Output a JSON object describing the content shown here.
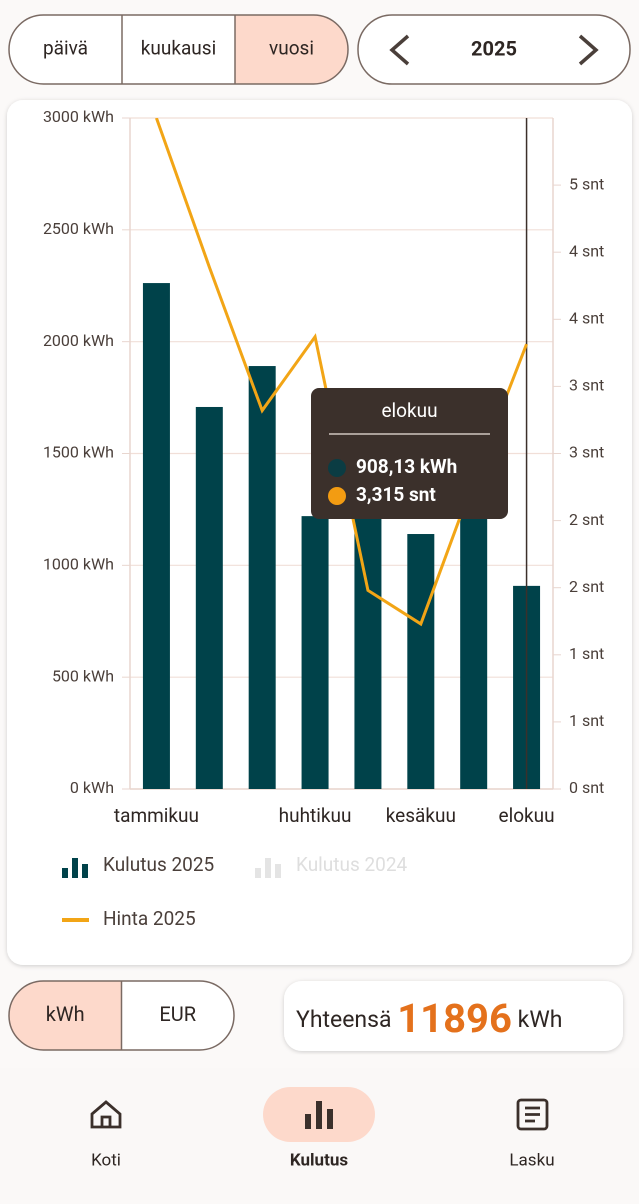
{
  "tabs": [
    "päivä",
    "kuukausi",
    "vuosi"
  ],
  "selected_tab": 2,
  "year": "2025",
  "chart_data": {
    "type": "bar_line",
    "categories": [
      "tammikuu",
      null,
      null,
      "huhtikuu",
      null,
      "kesäkuu",
      null,
      "elokuu"
    ],
    "series": [
      {
        "name": "Kulutus 2025",
        "color": "#00424a",
        "type": "bar",
        "values": [
          2262,
          1708,
          1891,
          1220,
          1520,
          1140,
          1247,
          908.13
        ]
      },
      {
        "name": "Kulutus 2024",
        "color": "#d9d9d9",
        "type": "bar",
        "hidden": true,
        "values": [
          null,
          null,
          null,
          null,
          null,
          null,
          null,
          null
        ]
      },
      {
        "name": "Hinta 2025",
        "color": "#f2a516",
        "type": "line",
        "axis": "y2",
        "values": [
          5.0,
          3.89,
          2.82,
          3.37,
          1.48,
          1.23,
          2.3,
          3.315
        ]
      }
    ],
    "ylim": [
      0,
      3000
    ],
    "yticks": [
      {
        "value": 0,
        "label": "0 kWh"
      },
      {
        "value": 500,
        "label": "500 kWh"
      },
      {
        "value": 1000,
        "label": "1000 kWh"
      },
      {
        "value": 1500,
        "label": "1500 kWh"
      },
      {
        "value": 2000,
        "label": "2000 kWh"
      },
      {
        "value": 2500,
        "label": "2500 kWh"
      },
      {
        "value": 3000,
        "label": "3000 kWh"
      }
    ],
    "y2lim": [
      0,
      5
    ],
    "y2ticks": [
      {
        "value": 0,
        "label": "0 snt"
      },
      {
        "value": 0.5,
        "label": "1 snt"
      },
      {
        "value": 1,
        "label": "1 snt"
      },
      {
        "value": 1.5,
        "label": "2 snt"
      },
      {
        "value": 2,
        "label": "2 snt"
      },
      {
        "value": 2.5,
        "label": "3 snt"
      },
      {
        "value": 3,
        "label": "3 snt"
      },
      {
        "value": 3.5,
        "label": "4 snt"
      },
      {
        "value": 4,
        "label": "4 snt"
      },
      {
        "value": 4.5,
        "label": "5 snt"
      }
    ],
    "grid": true,
    "tooltip": {
      "index": 7,
      "labels": [
        "908,13 kWh",
        "3,315 snt"
      ]
    }
  },
  "units": [
    "kWh",
    "EUR"
  ],
  "selected_unit": 0,
  "total": {
    "label": "Yhteensä",
    "value": 11896,
    "unit": "kWh"
  },
  "nav": [
    "Koti",
    "Kulutus",
    "Lasku"
  ],
  "selected_nav": 1
}
